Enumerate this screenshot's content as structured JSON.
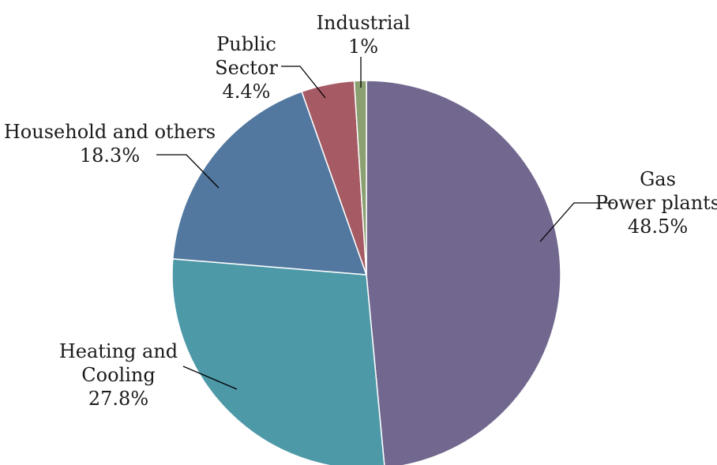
{
  "chart_data": {
    "type": "pie",
    "title": "",
    "slices": [
      {
        "lines": [
          "Gas",
          "Power plants"
        ],
        "value_label": "48.5%",
        "value": 48.5,
        "color": "#72688f"
      },
      {
        "lines": [
          "Heating and",
          "Cooling"
        ],
        "value_label": "27.8%",
        "value": 27.8,
        "color": "#4e99a8"
      },
      {
        "lines": [
          "Household and others"
        ],
        "value_label": "18.3%",
        "value": 18.3,
        "color": "#5278a0"
      },
      {
        "lines": [
          "Public",
          "Sector"
        ],
        "value_label": "4.4%",
        "value": 4.4,
        "color": "#a65b64"
      },
      {
        "lines": [
          "Industrial"
        ],
        "value_label": "1%",
        "value": 1.0,
        "color": "#8aa070"
      }
    ]
  }
}
